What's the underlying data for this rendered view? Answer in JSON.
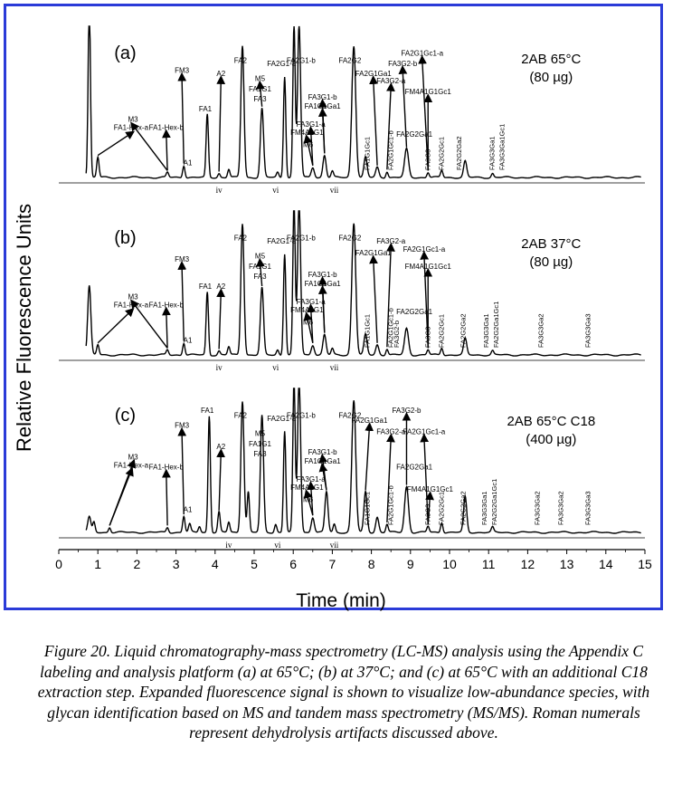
{
  "figure": {
    "caption": "Figure 20. Liquid chromatography-mass spectrometry (LC-MS) analysis using the Appendix C labeling and analysis platform (a) at 65°C; (b) at 37°C; and (c) at 65°C with an additional C18 extraction step. Expanded fluorescence signal is shown to visualize low-abundance species, with glycan identification based on MS and tandem mass spectrometry (MS/MS). Roman numerals represent dehydrolysis artifacts discussed above.",
    "colors": {
      "frame": "#2a3bd8",
      "trace": "#000000",
      "axis": "#000000"
    }
  },
  "chart_data": {
    "type": "line",
    "xlabel": "Time (min)",
    "ylabel": "Relative Fluorescence Units",
    "xlim": [
      0,
      15
    ],
    "xticks": [
      "0",
      "1",
      "2",
      "3",
      "4",
      "5",
      "6",
      "7",
      "8",
      "9",
      "10",
      "11",
      "12",
      "13",
      "14",
      "15"
    ],
    "grid": false,
    "panels": [
      {
        "id": "a",
        "tag": "(a)",
        "condition": "2AB 65°C",
        "amount": "(80 µg)",
        "peaks": [
          {
            "x": 0.78,
            "h": 1.7,
            "w": 0.03
          },
          {
            "x": 1.0,
            "h": 0.2,
            "w": 0.03
          },
          {
            "x": 2.78,
            "h": 0.05,
            "w": 0.03
          },
          {
            "x": 3.2,
            "h": 0.12,
            "w": 0.03
          },
          {
            "x": 3.8,
            "h": 0.62,
            "w": 0.03
          },
          {
            "x": 4.1,
            "h": 0.04,
            "w": 0.03
          },
          {
            "x": 4.35,
            "h": 0.08,
            "w": 0.03
          },
          {
            "x": 4.7,
            "h": 1.3,
            "w": 0.04
          },
          {
            "x": 5.2,
            "h": 0.68,
            "w": 0.04
          },
          {
            "x": 5.6,
            "h": 0.05,
            "w": 0.03
          },
          {
            "x": 5.78,
            "h": 1.0,
            "w": 0.03
          },
          {
            "x": 6.02,
            "h": 1.5,
            "w": 0.03
          },
          {
            "x": 6.15,
            "h": 1.5,
            "w": 0.04
          },
          {
            "x": 6.5,
            "h": 0.1,
            "w": 0.04
          },
          {
            "x": 6.8,
            "h": 0.22,
            "w": 0.04
          },
          {
            "x": 7.0,
            "h": 0.06,
            "w": 0.03
          },
          {
            "x": 7.55,
            "h": 1.3,
            "w": 0.05
          },
          {
            "x": 7.85,
            "h": 0.2,
            "w": 0.04
          },
          {
            "x": 8.15,
            "h": 0.1,
            "w": 0.04
          },
          {
            "x": 8.4,
            "h": 0.06,
            "w": 0.03
          },
          {
            "x": 8.9,
            "h": 0.28,
            "w": 0.05
          },
          {
            "x": 9.45,
            "h": 0.05,
            "w": 0.03
          },
          {
            "x": 9.8,
            "h": 0.07,
            "w": 0.03
          },
          {
            "x": 10.4,
            "h": 0.16,
            "w": 0.04
          },
          {
            "x": 11.1,
            "h": 0.04,
            "w": 0.03
          }
        ],
        "numerals": [
          {
            "text": "iv",
            "x": 4.1
          },
          {
            "text": "vi",
            "x": 5.55
          },
          {
            "text": "vii",
            "x": 7.05
          }
        ],
        "labels": [
          {
            "text": "M3",
            "x": 1.9,
            "y": 0.55
          },
          {
            "text": "FA1-Hex-a",
            "x": 1.85,
            "y": 0.47
          },
          {
            "text": "FA1-Hex-b",
            "x": 2.75,
            "y": 0.47
          },
          {
            "text": "FM3",
            "x": 3.15,
            "y": 1.03
          },
          {
            "text": "A1",
            "x": 3.3,
            "y": 0.12
          },
          {
            "text": "FA1",
            "x": 3.75,
            "y": 0.65
          },
          {
            "text": "A2",
            "x": 4.15,
            "y": 1.0
          },
          {
            "text": "FA2",
            "x": 4.65,
            "y": 1.13
          },
          {
            "text": "M5",
            "x": 5.15,
            "y": 0.95
          },
          {
            "text": "FA1G1",
            "x": 5.15,
            "y": 0.85
          },
          {
            "text": "FA3",
            "x": 5.15,
            "y": 0.75
          },
          {
            "text": "FA2G1-a",
            "x": 5.7,
            "y": 1.1
          },
          {
            "text": "FA2G1-b",
            "x": 6.2,
            "y": 1.13
          },
          {
            "text": "FA3G1-b",
            "x": 6.75,
            "y": 0.77
          },
          {
            "text": "FA1G1Ga1",
            "x": 6.75,
            "y": 0.68
          },
          {
            "text": "FA3G1-a",
            "x": 6.45,
            "y": 0.5
          },
          {
            "text": "FM4A1G1",
            "x": 6.35,
            "y": 0.42
          },
          {
            "text": "M6",
            "x": 6.38,
            "y": 0.3
          },
          {
            "text": "FA2G2",
            "x": 7.45,
            "y": 1.13
          },
          {
            "text": "FA2G1Ga1",
            "x": 8.05,
            "y": 1.0
          },
          {
            "text": "FA3G2-a",
            "x": 8.5,
            "y": 0.93
          },
          {
            "text": "FA3G2-b",
            "x": 8.8,
            "y": 1.1
          },
          {
            "text": "FA2G1Gc1-a",
            "x": 9.3,
            "y": 1.2
          },
          {
            "text": "FM4A1G1Gc1",
            "x": 9.45,
            "y": 0.82
          },
          {
            "text": "FA2G2Ga1",
            "x": 9.1,
            "y": 0.4
          }
        ],
        "rotated_labels": [
          {
            "text": "FA1G1Gc1",
            "x": 7.95
          },
          {
            "text": "FA2G1Gc1-b",
            "x": 8.55
          },
          {
            "text": "FA3G3",
            "x": 9.5
          },
          {
            "text": "FA2G2Gc1",
            "x": 9.85
          },
          {
            "text": "FA2G2Ga2",
            "x": 10.3
          },
          {
            "text": "FA3G3Ga1",
            "x": 11.15
          },
          {
            "text": "FA3G3Ga1Gc1",
            "x": 11.4
          }
        ]
      },
      {
        "id": "b",
        "tag": "(b)",
        "condition": "2AB 37°C",
        "amount": "(80 µg)",
        "peaks": [
          {
            "x": 0.78,
            "h": 0.68,
            "w": 0.04
          },
          {
            "x": 1.0,
            "h": 0.1,
            "w": 0.03
          },
          {
            "x": 2.78,
            "h": 0.05,
            "w": 0.03
          },
          {
            "x": 3.2,
            "h": 0.12,
            "w": 0.03
          },
          {
            "x": 3.8,
            "h": 0.62,
            "w": 0.03
          },
          {
            "x": 4.1,
            "h": 0.04,
            "w": 0.03
          },
          {
            "x": 4.35,
            "h": 0.08,
            "w": 0.03
          },
          {
            "x": 4.7,
            "h": 1.3,
            "w": 0.04
          },
          {
            "x": 5.2,
            "h": 0.66,
            "w": 0.04
          },
          {
            "x": 5.6,
            "h": 0.05,
            "w": 0.03
          },
          {
            "x": 5.78,
            "h": 1.0,
            "w": 0.03
          },
          {
            "x": 6.02,
            "h": 1.5,
            "w": 0.03
          },
          {
            "x": 6.15,
            "h": 1.5,
            "w": 0.04
          },
          {
            "x": 6.5,
            "h": 0.1,
            "w": 0.04
          },
          {
            "x": 6.8,
            "h": 0.2,
            "w": 0.04
          },
          {
            "x": 7.0,
            "h": 0.06,
            "w": 0.03
          },
          {
            "x": 7.55,
            "h": 1.3,
            "w": 0.05
          },
          {
            "x": 7.85,
            "h": 0.2,
            "w": 0.04
          },
          {
            "x": 8.15,
            "h": 0.1,
            "w": 0.04
          },
          {
            "x": 8.4,
            "h": 0.06,
            "w": 0.03
          },
          {
            "x": 8.9,
            "h": 0.26,
            "w": 0.05
          },
          {
            "x": 9.45,
            "h": 0.05,
            "w": 0.03
          },
          {
            "x": 9.8,
            "h": 0.07,
            "w": 0.03
          },
          {
            "x": 10.4,
            "h": 0.16,
            "w": 0.04
          },
          {
            "x": 11.1,
            "h": 0.04,
            "w": 0.03
          }
        ],
        "numerals": [
          {
            "text": "iv",
            "x": 4.1
          },
          {
            "text": "vi",
            "x": 5.55
          },
          {
            "text": "vii",
            "x": 7.05
          }
        ],
        "labels": [
          {
            "text": "M3",
            "x": 1.9,
            "y": 0.55
          },
          {
            "text": "FA1-Hex-a",
            "x": 1.85,
            "y": 0.47
          },
          {
            "text": "FA1-Hex-b",
            "x": 2.75,
            "y": 0.47
          },
          {
            "text": "FM3",
            "x": 3.15,
            "y": 0.92
          },
          {
            "text": "A1",
            "x": 3.3,
            "y": 0.12
          },
          {
            "text": "FA1",
            "x": 3.75,
            "y": 0.65
          },
          {
            "text": "A2",
            "x": 4.15,
            "y": 0.65
          },
          {
            "text": "FA2",
            "x": 4.65,
            "y": 1.13
          },
          {
            "text": "M5",
            "x": 5.15,
            "y": 0.95
          },
          {
            "text": "FA1G1",
            "x": 5.15,
            "y": 0.85
          },
          {
            "text": "FA3",
            "x": 5.15,
            "y": 0.75
          },
          {
            "text": "FA2G1-a",
            "x": 5.7,
            "y": 1.1
          },
          {
            "text": "FA2G1-b",
            "x": 6.2,
            "y": 1.13
          },
          {
            "text": "FA3G1-b",
            "x": 6.75,
            "y": 0.77
          },
          {
            "text": "FA1G1Ga1",
            "x": 6.75,
            "y": 0.68
          },
          {
            "text": "FA3G1-a",
            "x": 6.45,
            "y": 0.5
          },
          {
            "text": "FM4A1G1",
            "x": 6.35,
            "y": 0.42
          },
          {
            "text": "M6",
            "x": 6.38,
            "y": 0.3
          },
          {
            "text": "FA2G2",
            "x": 7.45,
            "y": 1.13
          },
          {
            "text": "FA2G1Ga1",
            "x": 8.05,
            "y": 0.98
          },
          {
            "text": "FA3G2-a",
            "x": 8.5,
            "y": 1.1
          },
          {
            "text": "FA2G1Gc1-a",
            "x": 9.35,
            "y": 1.02
          },
          {
            "text": "FM4A1G1Gc1",
            "x": 9.45,
            "y": 0.85
          },
          {
            "text": "FA2G2Ga1",
            "x": 9.1,
            "y": 0.4
          }
        ],
        "rotated_labels": [
          {
            "text": "FA3G2-b",
            "x": 8.7
          },
          {
            "text": "FA1G1Gc1",
            "x": 7.95
          },
          {
            "text": "FA2G1Gc1-b",
            "x": 8.55
          },
          {
            "text": "FA3G3",
            "x": 9.5
          },
          {
            "text": "FA2G2Gc1",
            "x": 9.85
          },
          {
            "text": "FA2G2Ga2",
            "x": 10.4
          },
          {
            "text": "FA3G3Ga1",
            "x": 11.0
          },
          {
            "text": "FA2G2Ga1Gc1",
            "x": 11.25
          },
          {
            "text": "FA3G3Ga2",
            "x": 12.4
          },
          {
            "text": "FA3G3Ga3",
            "x": 13.6
          }
        ]
      },
      {
        "id": "c",
        "tag": "(c)",
        "condition": "2AB 65°C C18",
        "amount": "(400 µg)",
        "peaks": [
          {
            "x": 0.78,
            "h": 0.15,
            "w": 0.04
          },
          {
            "x": 0.9,
            "h": 0.1,
            "w": 0.03
          },
          {
            "x": 1.3,
            "h": 0.05,
            "w": 0.03
          },
          {
            "x": 2.78,
            "h": 0.05,
            "w": 0.03
          },
          {
            "x": 3.2,
            "h": 0.16,
            "w": 0.03
          },
          {
            "x": 3.35,
            "h": 0.08,
            "w": 0.03
          },
          {
            "x": 3.6,
            "h": 0.06,
            "w": 0.03
          },
          {
            "x": 3.85,
            "h": 1.15,
            "w": 0.03
          },
          {
            "x": 4.1,
            "h": 0.2,
            "w": 0.03
          },
          {
            "x": 4.35,
            "h": 0.1,
            "w": 0.03
          },
          {
            "x": 4.7,
            "h": 1.3,
            "w": 0.04
          },
          {
            "x": 4.85,
            "h": 0.4,
            "w": 0.03
          },
          {
            "x": 5.2,
            "h": 1.15,
            "w": 0.04
          },
          {
            "x": 5.55,
            "h": 0.08,
            "w": 0.03
          },
          {
            "x": 5.78,
            "h": 1.0,
            "w": 0.03
          },
          {
            "x": 6.02,
            "h": 1.5,
            "w": 0.03
          },
          {
            "x": 6.15,
            "h": 1.5,
            "w": 0.04
          },
          {
            "x": 6.5,
            "h": 0.15,
            "w": 0.04
          },
          {
            "x": 6.85,
            "h": 0.4,
            "w": 0.04
          },
          {
            "x": 7.05,
            "h": 0.08,
            "w": 0.03
          },
          {
            "x": 7.55,
            "h": 1.3,
            "w": 0.05
          },
          {
            "x": 7.85,
            "h": 0.4,
            "w": 0.04
          },
          {
            "x": 8.15,
            "h": 0.15,
            "w": 0.04
          },
          {
            "x": 8.4,
            "h": 0.08,
            "w": 0.03
          },
          {
            "x": 8.9,
            "h": 0.45,
            "w": 0.05
          },
          {
            "x": 9.45,
            "h": 0.06,
            "w": 0.03
          },
          {
            "x": 9.8,
            "h": 0.1,
            "w": 0.03
          },
          {
            "x": 10.4,
            "h": 0.35,
            "w": 0.04
          },
          {
            "x": 11.1,
            "h": 0.05,
            "w": 0.03
          }
        ],
        "numerals": [
          {
            "text": "iv",
            "x": 4.35
          },
          {
            "text": "vi",
            "x": 5.6
          },
          {
            "text": "vii",
            "x": 7.05
          }
        ],
        "labels": [
          {
            "text": "M3",
            "x": 1.9,
            "y": 0.72
          },
          {
            "text": "FA1-Hex-a",
            "x": 1.85,
            "y": 0.64
          },
          {
            "text": "FA1-Hex-b",
            "x": 2.75,
            "y": 0.62
          },
          {
            "text": "FM3",
            "x": 3.15,
            "y": 1.03
          },
          {
            "text": "A1",
            "x": 3.3,
            "y": 0.2
          },
          {
            "text": "FA1",
            "x": 3.8,
            "y": 1.18
          },
          {
            "text": "A2",
            "x": 4.15,
            "y": 0.82
          },
          {
            "text": "FA2",
            "x": 4.65,
            "y": 1.13
          },
          {
            "text": "M5",
            "x": 5.15,
            "y": 0.95
          },
          {
            "text": "FA1G1",
            "x": 5.15,
            "y": 0.85
          },
          {
            "text": "FA3",
            "x": 5.15,
            "y": 0.75
          },
          {
            "text": "FA2G1-a",
            "x": 5.7,
            "y": 1.1
          },
          {
            "text": "FA2G1-b",
            "x": 6.2,
            "y": 1.13
          },
          {
            "text": "FA3G1-b",
            "x": 6.75,
            "y": 0.77
          },
          {
            "text": "FA1G1Ga1",
            "x": 6.75,
            "y": 0.68
          },
          {
            "text": "FA3G1-a",
            "x": 6.45,
            "y": 0.5
          },
          {
            "text": "FM4A1G1",
            "x": 6.35,
            "y": 0.42
          },
          {
            "text": "M6",
            "x": 6.38,
            "y": 0.3
          },
          {
            "text": "FA2G2",
            "x": 7.45,
            "y": 1.13
          },
          {
            "text": "FA2G1Ga1",
            "x": 7.95,
            "y": 1.08
          },
          {
            "text": "FA3G2-a",
            "x": 8.5,
            "y": 0.97
          },
          {
            "text": "FA3G2-b",
            "x": 8.9,
            "y": 1.18
          },
          {
            "text": "FA2G1Gc1-a",
            "x": 9.35,
            "y": 0.97
          },
          {
            "text": "FA2G2Ga1",
            "x": 9.1,
            "y": 0.62
          },
          {
            "text": "FM4A1G1Gc1",
            "x": 9.5,
            "y": 0.4
          }
        ],
        "rotated_labels": [
          {
            "text": "FA1G1Gc1",
            "x": 7.95
          },
          {
            "text": "FA2G1Gc1-b",
            "x": 8.55
          },
          {
            "text": "FA3G3",
            "x": 9.5
          },
          {
            "text": "FA2G2Gc1",
            "x": 9.85
          },
          {
            "text": "FA2G2Ga2",
            "x": 10.4
          },
          {
            "text": "FA3G3Ga1",
            "x": 10.95
          },
          {
            "text": "FA2G2Ga1Gc1",
            "x": 11.2
          },
          {
            "text": "FA3G3Ga2",
            "x": 12.3
          },
          {
            "text": "FA3G3Ga2",
            "x": 12.9
          },
          {
            "text": "FA3G3Ga3",
            "x": 13.6
          }
        ]
      }
    ]
  }
}
